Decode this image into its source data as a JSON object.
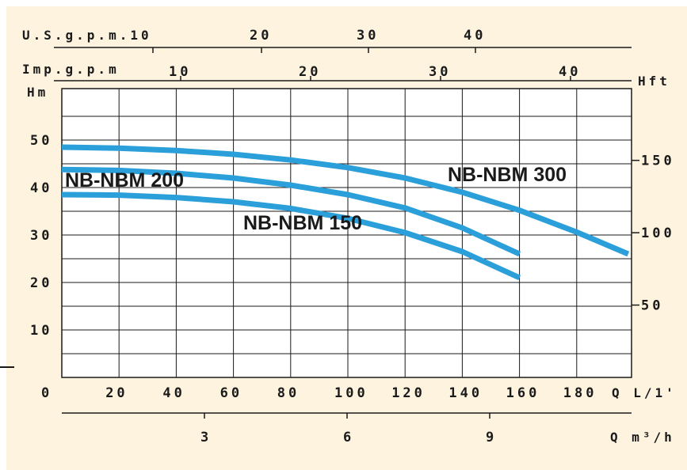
{
  "chart_data": {
    "type": "line",
    "title": "",
    "colors": {
      "background": "#fdf3de",
      "curve": "#2b9fd9",
      "grid": "#1a1a1a"
    },
    "units": {
      "usgpm": "U.S.g.p.m.",
      "impgpm": "Imp.g.p.m",
      "hm": "Hm",
      "hft": "Hft",
      "ql": "Q L/1'",
      "qm": "Q m³/h"
    },
    "x_axis_lpm": {
      "label": "Q L/1'",
      "range": [
        0,
        200
      ],
      "ticks": [
        "0",
        "20",
        "40",
        "60",
        "80",
        "100",
        "120",
        "140",
        "160",
        "180"
      ],
      "tick_values": [
        0,
        20,
        40,
        60,
        80,
        100,
        120,
        140,
        160,
        180
      ]
    },
    "x_axis_m3h": {
      "label": "Q m³/h",
      "ticks": [
        "3",
        "6",
        "9"
      ],
      "tick_values": [
        3,
        6,
        9
      ]
    },
    "x_axis_usgpm": {
      "label": "U.S.g.p.m.",
      "ticks": [
        "10",
        "20",
        "30",
        "40"
      ],
      "tick_values": [
        10,
        20,
        30,
        40
      ]
    },
    "x_axis_impgpm": {
      "label": "Imp.g.p.m",
      "ticks": [
        "10",
        "20",
        "30",
        "40"
      ],
      "tick_values": [
        10,
        20,
        30,
        40
      ]
    },
    "y_axis_m": {
      "label": "Hm",
      "range": [
        0,
        58
      ],
      "ticks": [
        "10",
        "20",
        "30",
        "40",
        "50"
      ],
      "tick_values": [
        10,
        20,
        30,
        40,
        50
      ]
    },
    "y_axis_ft": {
      "label": "Hft",
      "ticks": [
        "50",
        "100",
        "150"
      ],
      "tick_values": [
        50,
        100,
        150
      ]
    },
    "grid": true,
    "series": [
      {
        "name": "NB-NBM 300",
        "x": [
          0,
          20,
          40,
          60,
          80,
          100,
          120,
          140,
          160,
          180,
          198
        ],
        "y": [
          48.5,
          48.3,
          47.8,
          47,
          45.8,
          44.2,
          42,
          39,
          35.2,
          30.6,
          26
        ]
      },
      {
        "name": "NB-NBM 200",
        "x": [
          0,
          20,
          40,
          60,
          80,
          100,
          120,
          140,
          160
        ],
        "y": [
          43.8,
          43.6,
          43,
          42,
          40.5,
          38.5,
          35.7,
          31.5,
          26
        ]
      },
      {
        "name": "NB-NBM 150",
        "x": [
          0,
          20,
          40,
          60,
          80,
          100,
          120,
          140,
          160
        ],
        "y": [
          38.5,
          38.4,
          37.9,
          37,
          35.6,
          33.5,
          30.5,
          26.5,
          21
        ]
      }
    ],
    "annotations": [
      "NB-NBM 300",
      "NB-NBM 200",
      "NB-NBM 150"
    ]
  }
}
